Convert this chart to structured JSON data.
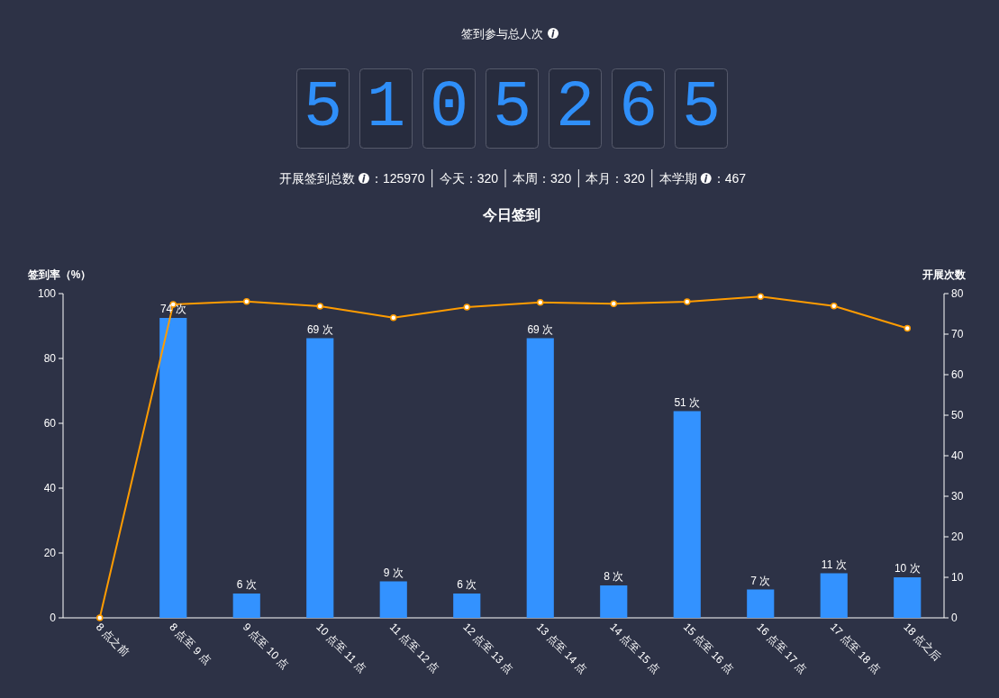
{
  "chart_data": [
    {
      "type": "other",
      "title": "签到参与总人次",
      "annotations": [
        "5105265",
        "开展签到总数",
        "：125970",
        "今天：320",
        "本周：320",
        "本月：320",
        "本学期",
        "：467"
      ]
    },
    {
      "type": "bar",
      "title": "今日签到",
      "ylabel": "签到率（%）",
      "y2label": "开展次数",
      "categories": [
        "8 点之前",
        "8 点至 9 点",
        "9 点至 10 点",
        "10 点至 11 点",
        "11 点至 12 点",
        "12 点至 13 点",
        "13 点至 14 点",
        "14 点至 15 点",
        "15 点至 16 点",
        "16 点至 17 点",
        "17 点至 18 点",
        "18 点之后"
      ],
      "ylim": [
        0,
        100
      ],
      "yticks": [
        0,
        20,
        40,
        60,
        80,
        100
      ],
      "y2lim": [
        0,
        80
      ],
      "y2ticks": [
        0,
        10,
        20,
        30,
        40,
        50,
        60,
        70,
        80
      ],
      "series": [
        {
          "type": "bar",
          "axis": "y2",
          "color": "#3392ff",
          "values": [
            null,
            74,
            6,
            69,
            9,
            6,
            69,
            8,
            51,
            7,
            11,
            10
          ],
          "value_labels": [
            null,
            "74 次",
            "6 次",
            "69 次",
            "9 次",
            "6 次",
            "69 次",
            "8 次",
            "51 次",
            "7 次",
            "11 次",
            "10 次"
          ]
        },
        {
          "type": "line",
          "axis": "y",
          "color": "#ff9c00",
          "marker": "circle",
          "values": [
            0,
            96.7,
            97.6,
            96.1,
            92.6,
            95.8,
            97.3,
            96.9,
            97.5,
            99.1,
            96.2,
            89.3
          ]
        }
      ]
    }
  ]
}
